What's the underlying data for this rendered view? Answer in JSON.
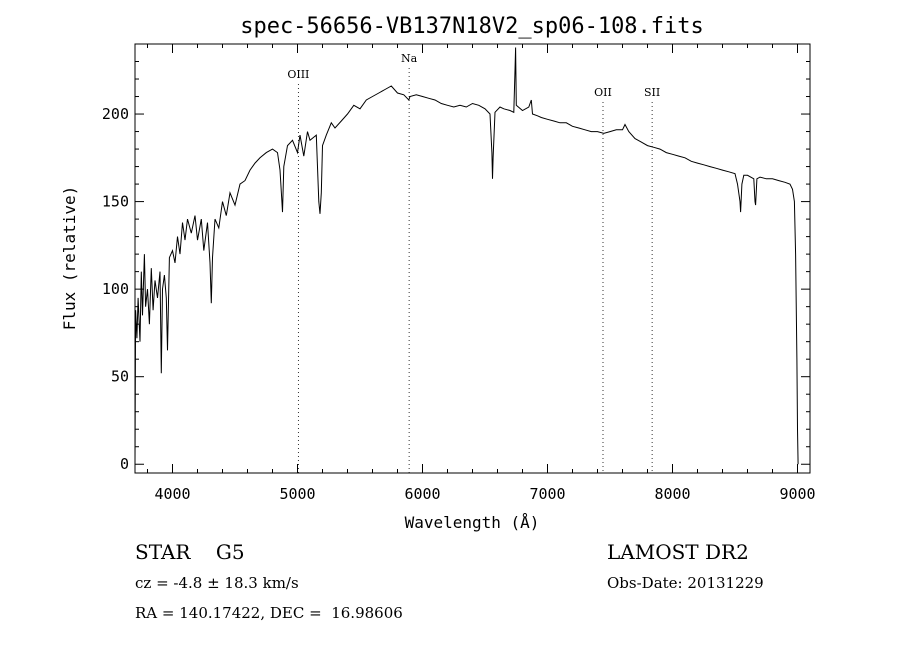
{
  "chart_data": {
    "type": "line",
    "title": "spec-56656-VB137N18V2_sp06-108.fits",
    "xlabel": "Wavelength (Å)",
    "ylabel": "Flux (relative)",
    "xlim": [
      3700,
      9100
    ],
    "ylim": [
      -5,
      240
    ],
    "x_ticks": [
      4000,
      5000,
      6000,
      7000,
      8000,
      9000
    ],
    "y_ticks": [
      0,
      50,
      100,
      150,
      200
    ],
    "grid": false,
    "series": [
      {
        "points": [
          [
            3700,
            0
          ],
          [
            3705,
            88
          ],
          [
            3715,
            72
          ],
          [
            3725,
            95
          ],
          [
            3740,
            70
          ],
          [
            3750,
            110
          ],
          [
            3760,
            85
          ],
          [
            3775,
            120
          ],
          [
            3785,
            90
          ],
          [
            3800,
            100
          ],
          [
            3815,
            80
          ],
          [
            3830,
            112
          ],
          [
            3845,
            88
          ],
          [
            3860,
            105
          ],
          [
            3880,
            95
          ],
          [
            3900,
            110
          ],
          [
            3910,
            52
          ],
          [
            3920,
            100
          ],
          [
            3935,
            108
          ],
          [
            3950,
            95
          ],
          [
            3960,
            65
          ],
          [
            3975,
            118
          ],
          [
            4000,
            122
          ],
          [
            4020,
            115
          ],
          [
            4040,
            130
          ],
          [
            4060,
            120
          ],
          [
            4080,
            138
          ],
          [
            4100,
            128
          ],
          [
            4120,
            140
          ],
          [
            4150,
            132
          ],
          [
            4180,
            142
          ],
          [
            4200,
            128
          ],
          [
            4230,
            140
          ],
          [
            4250,
            122
          ],
          [
            4280,
            138
          ],
          [
            4300,
            115
          ],
          [
            4310,
            92
          ],
          [
            4320,
            118
          ],
          [
            4340,
            140
          ],
          [
            4370,
            135
          ],
          [
            4400,
            150
          ],
          [
            4430,
            142
          ],
          [
            4460,
            155
          ],
          [
            4500,
            148
          ],
          [
            4540,
            160
          ],
          [
            4580,
            162
          ],
          [
            4620,
            168
          ],
          [
            4660,
            172
          ],
          [
            4700,
            175
          ],
          [
            4750,
            178
          ],
          [
            4800,
            180
          ],
          [
            4840,
            178
          ],
          [
            4860,
            168
          ],
          [
            4875,
            150
          ],
          [
            4880,
            144
          ],
          [
            4890,
            170
          ],
          [
            4920,
            182
          ],
          [
            4960,
            185
          ],
          [
            5000,
            178
          ],
          [
            5020,
            188
          ],
          [
            5050,
            176
          ],
          [
            5080,
            190
          ],
          [
            5100,
            185
          ],
          [
            5150,
            188
          ],
          [
            5170,
            150
          ],
          [
            5180,
            143
          ],
          [
            5190,
            155
          ],
          [
            5200,
            182
          ],
          [
            5230,
            188
          ],
          [
            5270,
            195
          ],
          [
            5300,
            192
          ],
          [
            5350,
            196
          ],
          [
            5400,
            200
          ],
          [
            5450,
            205
          ],
          [
            5500,
            203
          ],
          [
            5550,
            208
          ],
          [
            5600,
            210
          ],
          [
            5650,
            212
          ],
          [
            5700,
            214
          ],
          [
            5750,
            216
          ],
          [
            5800,
            212
          ],
          [
            5850,
            211
          ],
          [
            5890,
            208
          ],
          [
            5900,
            210
          ],
          [
            5950,
            211
          ],
          [
            6000,
            210
          ],
          [
            6050,
            209
          ],
          [
            6100,
            208
          ],
          [
            6150,
            206
          ],
          [
            6200,
            205
          ],
          [
            6250,
            204
          ],
          [
            6300,
            205
          ],
          [
            6350,
            204
          ],
          [
            6400,
            206
          ],
          [
            6450,
            205
          ],
          [
            6500,
            203
          ],
          [
            6540,
            200
          ],
          [
            6555,
            178
          ],
          [
            6560,
            163
          ],
          [
            6565,
            175
          ],
          [
            6580,
            201
          ],
          [
            6620,
            204
          ],
          [
            6650,
            203
          ],
          [
            6700,
            202
          ],
          [
            6730,
            201
          ],
          [
            6740,
            225
          ],
          [
            6745,
            238
          ],
          [
            6750,
            205
          ],
          [
            6800,
            202
          ],
          [
            6850,
            204
          ],
          [
            6870,
            208
          ],
          [
            6880,
            200
          ],
          [
            6920,
            199
          ],
          [
            6950,
            198
          ],
          [
            7000,
            197
          ],
          [
            7050,
            196
          ],
          [
            7100,
            195
          ],
          [
            7150,
            195
          ],
          [
            7200,
            193
          ],
          [
            7250,
            192
          ],
          [
            7300,
            191
          ],
          [
            7350,
            190
          ],
          [
            7400,
            190
          ],
          [
            7450,
            189
          ],
          [
            7500,
            190
          ],
          [
            7550,
            191
          ],
          [
            7600,
            191
          ],
          [
            7620,
            194
          ],
          [
            7650,
            190
          ],
          [
            7700,
            186
          ],
          [
            7750,
            184
          ],
          [
            7800,
            182
          ],
          [
            7850,
            181
          ],
          [
            7900,
            180
          ],
          [
            7950,
            178
          ],
          [
            8000,
            177
          ],
          [
            8050,
            176
          ],
          [
            8100,
            175
          ],
          [
            8150,
            173
          ],
          [
            8200,
            172
          ],
          [
            8250,
            171
          ],
          [
            8300,
            170
          ],
          [
            8350,
            169
          ],
          [
            8400,
            168
          ],
          [
            8450,
            167
          ],
          [
            8500,
            166
          ],
          [
            8520,
            160
          ],
          [
            8540,
            150
          ],
          [
            8545,
            144
          ],
          [
            8555,
            160
          ],
          [
            8570,
            165
          ],
          [
            8600,
            165
          ],
          [
            8650,
            163
          ],
          [
            8660,
            150
          ],
          [
            8665,
            148
          ],
          [
            8675,
            163
          ],
          [
            8700,
            164
          ],
          [
            8750,
            163
          ],
          [
            8800,
            163
          ],
          [
            8850,
            162
          ],
          [
            8900,
            161
          ],
          [
            8940,
            160
          ],
          [
            8960,
            157
          ],
          [
            8975,
            150
          ],
          [
            8985,
            120
          ],
          [
            8995,
            60
          ],
          [
            9000,
            20
          ],
          [
            9005,
            0
          ]
        ]
      }
    ],
    "line_markers": [
      {
        "label": "OIII",
        "x": 5007
      },
      {
        "label": "Na",
        "x": 5893
      },
      {
        "label": "OII",
        "x": 7444
      },
      {
        "label": "SII",
        "x": 7837
      }
    ]
  },
  "info": {
    "class_label": "STAR    G5",
    "survey": "LAMOST DR2",
    "cz": "cz = -4.8 ± 18.3 km/s",
    "obs_date": "Obs-Date: 20131229",
    "radec": "RA = 140.17422, DEC =  16.98606"
  }
}
